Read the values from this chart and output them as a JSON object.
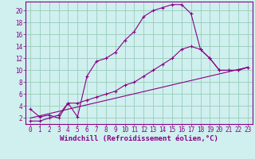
{
  "bg_color": "#cff0ee",
  "line_color": "#880088",
  "grid_color": "#99ccbb",
  "xlabel": "Windchill (Refroidissement éolien,°C)",
  "xlabel_fontsize": 6.5,
  "tick_fontsize": 5.5,
  "xlim": [
    -0.5,
    23.5
  ],
  "ylim": [
    1,
    21.5
  ],
  "xticks": [
    0,
    1,
    2,
    3,
    4,
    5,
    6,
    7,
    8,
    9,
    10,
    11,
    12,
    13,
    14,
    15,
    16,
    17,
    18,
    19,
    20,
    21,
    22,
    23
  ],
  "yticks": [
    2,
    4,
    6,
    8,
    10,
    12,
    14,
    16,
    18,
    20
  ],
  "curve1_x": [
    0,
    1,
    2,
    3,
    4,
    5,
    6,
    7,
    8,
    9,
    10,
    11,
    12,
    13,
    14,
    15,
    16,
    17,
    18,
    19,
    20,
    21,
    22,
    23
  ],
  "curve1_y": [
    3.5,
    2.2,
    2.5,
    2.0,
    4.5,
    2.2,
    9.0,
    11.5,
    12.0,
    13.0,
    15.0,
    16.5,
    19.0,
    20.0,
    20.5,
    21.0,
    21.0,
    19.5,
    13.5,
    12.0,
    10.0,
    10.0,
    10.0,
    10.5
  ],
  "curve2_x": [
    0,
    1,
    2,
    3,
    4,
    5,
    6,
    7,
    8,
    9,
    10,
    11,
    12,
    13,
    14,
    15,
    16,
    17,
    18,
    19,
    20,
    21,
    22,
    23
  ],
  "curve2_y": [
    1.5,
    1.5,
    2.0,
    2.5,
    4.5,
    4.5,
    5.0,
    5.5,
    6.0,
    6.5,
    7.5,
    8.0,
    9.0,
    10.0,
    11.0,
    12.0,
    13.5,
    14.0,
    13.5,
    12.0,
    10.0,
    10.0,
    10.0,
    10.5
  ],
  "curve3_x": [
    0,
    23
  ],
  "curve3_y": [
    2.0,
    10.5
  ]
}
